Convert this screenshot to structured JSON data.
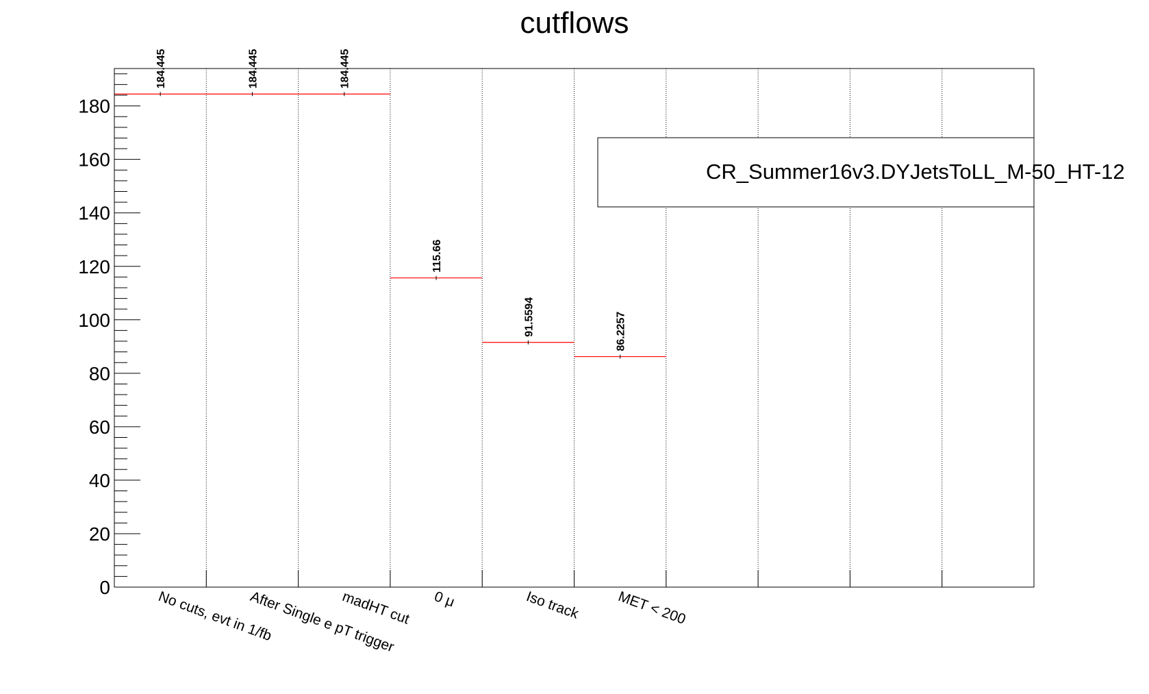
{
  "chart_data": {
    "type": "bar",
    "style": "step-histogram",
    "title": "cutflows",
    "xlabel": "",
    "ylabel": "",
    "ylim": [
      0,
      194
    ],
    "yticks": [
      0,
      20,
      40,
      60,
      80,
      100,
      120,
      140,
      160,
      180
    ],
    "nbins": 10,
    "grid": "vertical-dotted",
    "categories": [
      "No cuts, evt in 1/fb",
      "After Single e pT trigger",
      "madHT cut",
      "0 μ",
      "Iso track",
      "MET < 200"
    ],
    "values": [
      184.445,
      184.445,
      184.445,
      115.66,
      91.5594,
      86.2257
    ],
    "value_labels": [
      "184.445",
      "184.445",
      "184.445",
      "115.66",
      "91.5594",
      "86.2257"
    ],
    "series": [
      {
        "name": "CR_Summer16v3.DYJetsToLL_M-50_HT-12",
        "values": [
          184.445,
          184.445,
          184.445,
          115.66,
          91.5594,
          86.2257
        ],
        "color": "#ff0000"
      }
    ],
    "legend": {
      "position": "top-right",
      "text": "CR_Summer16v3.DYJetsToLL_M-50_HT-12"
    }
  }
}
